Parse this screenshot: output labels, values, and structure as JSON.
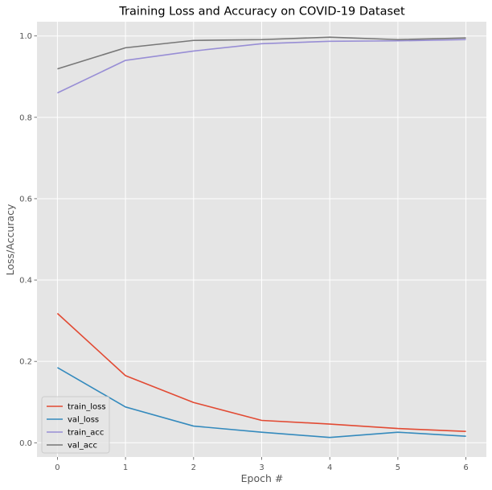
{
  "chart_data": {
    "type": "line",
    "title": "Training Loss and Accuracy on COVID-19 Dataset",
    "xlabel": "Epoch #",
    "ylabel": "Loss/Accuracy",
    "x": [
      0,
      1,
      2,
      3,
      4,
      5,
      6
    ],
    "xlim": [
      -0.3,
      6.3
    ],
    "ylim": [
      -0.035,
      1.035
    ],
    "xticks": [
      "0",
      "1",
      "2",
      "3",
      "4",
      "5",
      "6"
    ],
    "yticks": [
      "0.0",
      "0.2",
      "0.4",
      "0.6",
      "0.8",
      "1.0"
    ],
    "grid": true,
    "legend_position": "lower-left",
    "series": [
      {
        "name": "train_loss",
        "color": "#E24A33",
        "values": [
          0.318,
          0.165,
          0.099,
          0.055,
          0.046,
          0.035,
          0.028
        ]
      },
      {
        "name": "val_loss",
        "color": "#348ABD",
        "values": [
          0.185,
          0.088,
          0.041,
          0.026,
          0.013,
          0.026,
          0.016
        ]
      },
      {
        "name": "train_acc",
        "color": "#988ED5",
        "values": [
          0.86,
          0.94,
          0.963,
          0.981,
          0.987,
          0.988,
          0.991
        ]
      },
      {
        "name": "val_acc",
        "color": "#777777",
        "values": [
          0.919,
          0.971,
          0.989,
          0.991,
          0.997,
          0.991,
          0.995
        ]
      }
    ],
    "colors": {
      "axes_background": "#E5E5E5",
      "grid": "#FFFFFF",
      "page_background": "#FFFFFF"
    }
  }
}
